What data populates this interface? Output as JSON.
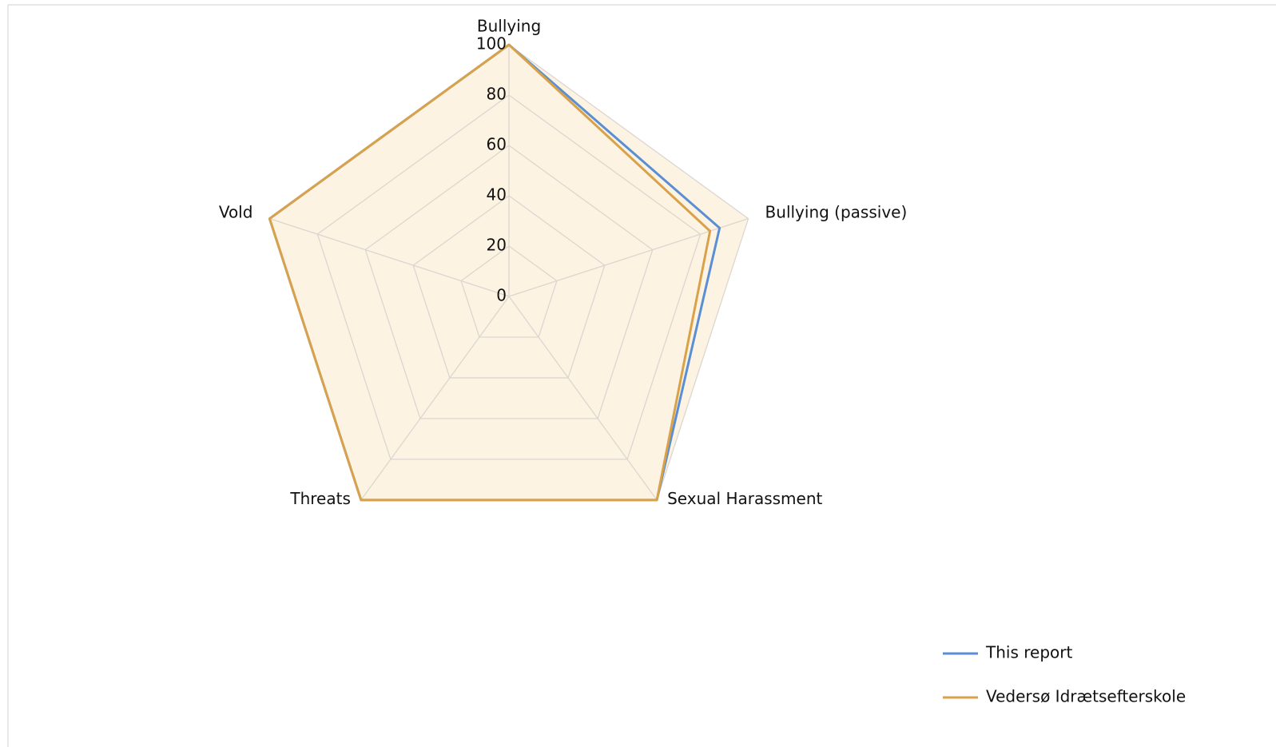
{
  "chart_data": {
    "type": "radar",
    "categories": [
      "Bullying",
      "Bullying (passive)",
      "Sexual Harassment",
      "Threats",
      "Vold"
    ],
    "series": [
      {
        "name": "This report",
        "color": "#5b8fd4",
        "values": [
          100,
          88,
          100,
          100,
          100
        ]
      },
      {
        "name": "Vedersø Idrætsefterskole",
        "color": "#d9a24a",
        "values": [
          100,
          84,
          100,
          100,
          100
        ]
      }
    ],
    "ylim": [
      0,
      100
    ],
    "yticks": [
      0,
      20,
      40,
      60,
      80,
      100
    ],
    "grid": true,
    "legend": "lower right"
  }
}
